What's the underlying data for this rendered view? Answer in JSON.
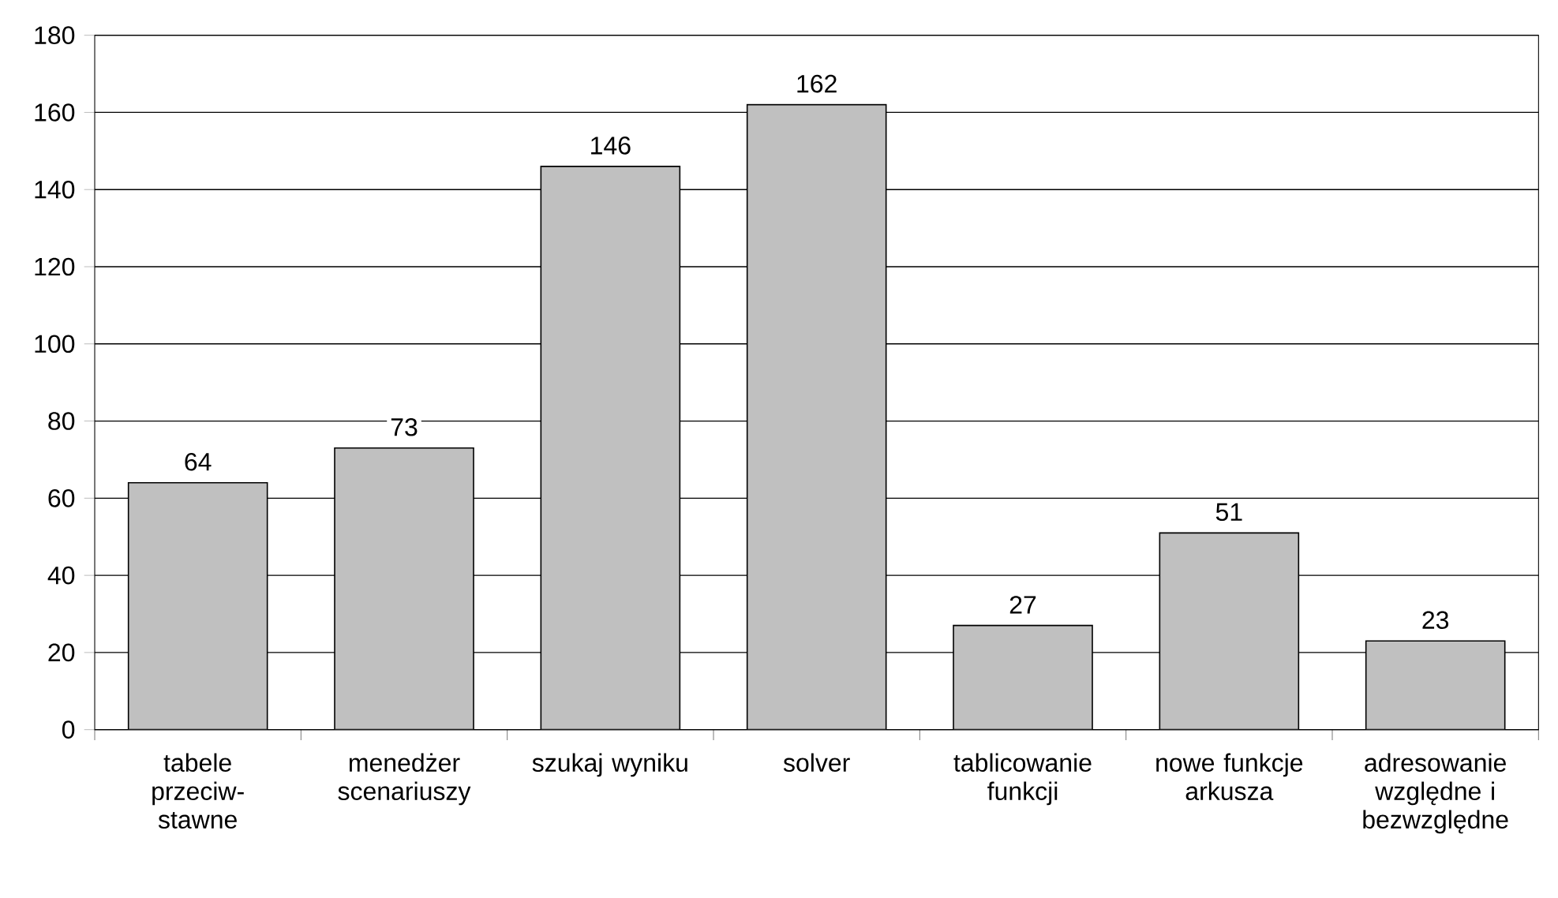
{
  "chart_data": {
    "type": "bar",
    "categories": [
      "tabele przeciw-stawne",
      "menedżer scenariuszy",
      "szukaj wyniku",
      "solver",
      "tablicowanie funkcji",
      "nowe funkcje arkusza",
      "adresowanie względne i bezwzględne"
    ],
    "values": [
      64,
      73,
      146,
      162,
      27,
      51,
      23
    ],
    "color": "#c0c0c0",
    "ylim": [
      0,
      180
    ],
    "yticks": [
      0,
      20,
      40,
      60,
      80,
      100,
      120,
      140,
      160,
      180
    ],
    "grid": "y",
    "data_labels": true
  }
}
